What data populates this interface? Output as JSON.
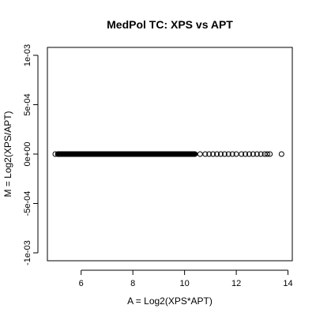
{
  "chart_data": {
    "type": "scatter",
    "title": "MedPol TC: XPS vs APT",
    "xlabel": "A = Log2(XPS*APT)",
    "ylabel": "M = Log2(XPS/APT)",
    "xlim": [
      5,
      14
    ],
    "ylim": [
      -0.001,
      0.001
    ],
    "x_ticks": [
      6,
      8,
      10,
      12,
      14
    ],
    "x_tick_labels": [
      "6",
      "8",
      "10",
      "12",
      "14"
    ],
    "y_ticks": [
      -0.001,
      -0.0005,
      0,
      0.0005,
      0.001
    ],
    "y_tick_labels": [
      "-1e-03",
      "-5e-04",
      "0e+00",
      "5e-04",
      "1e-03"
    ],
    "marker": "open-circle",
    "grid": false,
    "legend": "none",
    "series": [
      {
        "dense_x_range": [
          5.1,
          10.4
        ],
        "y": 0,
        "points": [
          {
            "x": 5.0,
            "y": 0
          },
          {
            "x": 5.1,
            "y": 0
          },
          {
            "x": 10.6,
            "y": 0
          },
          {
            "x": 10.8,
            "y": 0
          },
          {
            "x": 10.95,
            "y": 0
          },
          {
            "x": 11.1,
            "y": 0
          },
          {
            "x": 11.25,
            "y": 0
          },
          {
            "x": 11.4,
            "y": 0
          },
          {
            "x": 11.55,
            "y": 0
          },
          {
            "x": 11.7,
            "y": 0
          },
          {
            "x": 11.85,
            "y": 0
          },
          {
            "x": 12.0,
            "y": 0
          },
          {
            "x": 12.2,
            "y": 0
          },
          {
            "x": 12.35,
            "y": 0
          },
          {
            "x": 12.5,
            "y": 0
          },
          {
            "x": 12.65,
            "y": 0
          },
          {
            "x": 12.8,
            "y": 0
          },
          {
            "x": 12.95,
            "y": 0
          },
          {
            "x": 13.1,
            "y": 0
          },
          {
            "x": 13.2,
            "y": 0
          },
          {
            "x": 13.3,
            "y": 0
          },
          {
            "x": 13.75,
            "y": 0
          }
        ]
      }
    ]
  }
}
